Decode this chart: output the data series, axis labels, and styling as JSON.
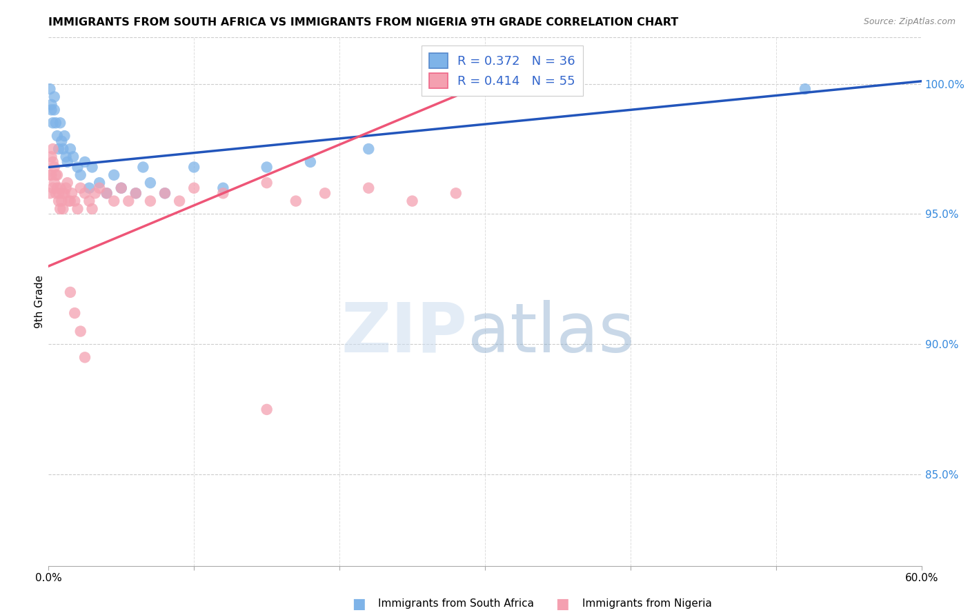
{
  "title": "IMMIGRANTS FROM SOUTH AFRICA VS IMMIGRANTS FROM NIGERIA 9TH GRADE CORRELATION CHART",
  "source": "Source: ZipAtlas.com",
  "ylabel": "9th Grade",
  "yticks": [
    "100.0%",
    "95.0%",
    "90.0%",
    "85.0%"
  ],
  "ytick_values": [
    1.0,
    0.95,
    0.9,
    0.85
  ],
  "xlim": [
    0.0,
    0.6
  ],
  "ylim": [
    0.815,
    1.018
  ],
  "legend_label1": "Immigrants from South Africa",
  "legend_label2": "Immigrants from Nigeria",
  "r1": 0.372,
  "n1": 36,
  "r2": 0.414,
  "n2": 55,
  "color_sa": "#7EB3E8",
  "color_ng": "#F4A0B0",
  "color_sa_line": "#2255BB",
  "color_ng_line": "#EE5577",
  "sa_x": [
    0.001,
    0.002,
    0.002,
    0.003,
    0.004,
    0.004,
    0.005,
    0.006,
    0.007,
    0.008,
    0.009,
    0.01,
    0.011,
    0.012,
    0.013,
    0.015,
    0.017,
    0.02,
    0.022,
    0.025,
    0.028,
    0.03,
    0.035,
    0.04,
    0.045,
    0.05,
    0.06,
    0.065,
    0.07,
    0.08,
    0.1,
    0.12,
    0.15,
    0.18,
    0.22,
    0.52
  ],
  "sa_y": [
    0.998,
    0.992,
    0.99,
    0.985,
    0.995,
    0.99,
    0.985,
    0.98,
    0.975,
    0.985,
    0.978,
    0.975,
    0.98,
    0.972,
    0.97,
    0.975,
    0.972,
    0.968,
    0.965,
    0.97,
    0.96,
    0.968,
    0.962,
    0.958,
    0.965,
    0.96,
    0.958,
    0.968,
    0.962,
    0.958,
    0.968,
    0.96,
    0.968,
    0.97,
    0.975,
    0.998
  ],
  "ng_x": [
    0.001,
    0.001,
    0.002,
    0.002,
    0.003,
    0.003,
    0.003,
    0.004,
    0.004,
    0.005,
    0.005,
    0.006,
    0.006,
    0.007,
    0.007,
    0.008,
    0.008,
    0.009,
    0.01,
    0.01,
    0.011,
    0.012,
    0.013,
    0.014,
    0.015,
    0.016,
    0.018,
    0.02,
    0.022,
    0.025,
    0.028,
    0.03,
    0.032,
    0.035,
    0.04,
    0.045,
    0.05,
    0.055,
    0.06,
    0.07,
    0.08,
    0.09,
    0.1,
    0.12,
    0.15,
    0.17,
    0.19,
    0.22,
    0.25,
    0.28,
    0.015,
    0.018,
    0.022,
    0.025,
    0.15
  ],
  "ng_y": [
    0.965,
    0.958,
    0.972,
    0.965,
    0.975,
    0.97,
    0.96,
    0.968,
    0.962,
    0.965,
    0.958,
    0.96,
    0.965,
    0.955,
    0.958,
    0.952,
    0.96,
    0.955,
    0.958,
    0.952,
    0.958,
    0.96,
    0.962,
    0.955,
    0.955,
    0.958,
    0.955,
    0.952,
    0.96,
    0.958,
    0.955,
    0.952,
    0.958,
    0.96,
    0.958,
    0.955,
    0.96,
    0.955,
    0.958,
    0.955,
    0.958,
    0.955,
    0.96,
    0.958,
    0.962,
    0.955,
    0.958,
    0.96,
    0.955,
    0.958,
    0.92,
    0.912,
    0.905,
    0.895,
    0.875
  ],
  "sa_line_x": [
    0.0,
    0.6
  ],
  "sa_line_y": [
    0.968,
    1.001
  ],
  "ng_line_x": [
    0.0,
    0.3
  ],
  "ng_line_y": [
    0.93,
    1.0
  ]
}
